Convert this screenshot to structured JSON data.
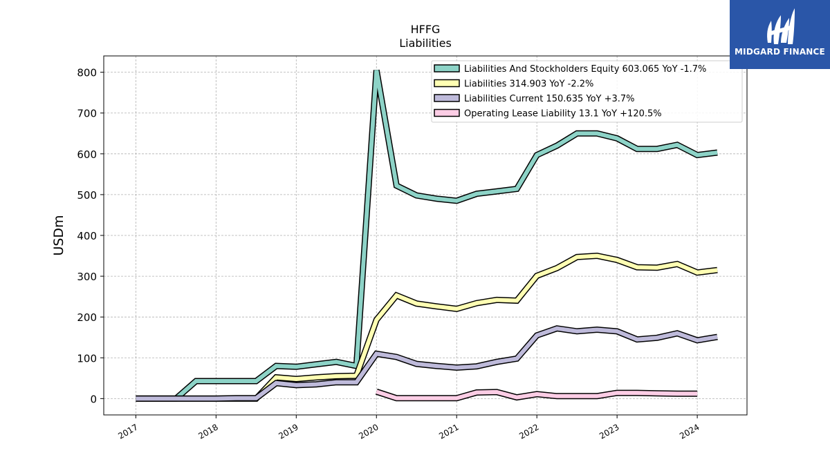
{
  "logo": {
    "text": "MIDGARD FINANCE",
    "color": "#2a56a8"
  },
  "chart_data": {
    "type": "line",
    "title": "HFFG",
    "subtitle": "Liabilities",
    "xlabel": "",
    "ylabel": "USDm",
    "ylim": [
      -40,
      840
    ],
    "xlim": [
      2016.6,
      2024.62
    ],
    "yticks": [
      0,
      100,
      200,
      300,
      400,
      500,
      600,
      700,
      800
    ],
    "xticks": [
      2017,
      2018,
      2019,
      2020,
      2021,
      2022,
      2023,
      2024
    ],
    "grid": true,
    "legend_position": "top-right",
    "series": [
      {
        "name": "Liabilities And Stockholders Equity  603.065 YoY -1.7%",
        "color": "#8dd3c7",
        "x": [
          2017.0,
          2017.5,
          2017.75,
          2018.0,
          2018.25,
          2018.5,
          2018.75,
          2019.0,
          2019.25,
          2019.5,
          2019.75,
          2020.0,
          2020.25,
          2020.5,
          2020.75,
          2021.0,
          2021.25,
          2021.5,
          2021.75,
          2022.0,
          2022.25,
          2022.5,
          2022.75,
          2023.0,
          2023.25,
          2023.5,
          2023.75,
          2024.0,
          2024.25
        ],
        "y": [
          0,
          0,
          43,
          43,
          43,
          43,
          80,
          78,
          84,
          90,
          80,
          805,
          522,
          498,
          490,
          485,
          502,
          508,
          514,
          597,
          620,
          650,
          650,
          638,
          612,
          612,
          622,
          597,
          603
        ]
      },
      {
        "name": "Liabilities  314.903 YoY -2.2%",
        "color": "#ffffb3",
        "x": [
          2017.0,
          2017.5,
          2017.75,
          2018.0,
          2018.25,
          2018.5,
          2018.75,
          2019.0,
          2019.25,
          2019.5,
          2019.75,
          2020.0,
          2020.25,
          2020.5,
          2020.75,
          2021.0,
          2021.25,
          2021.5,
          2021.75,
          2022.0,
          2022.25,
          2022.5,
          2022.75,
          2023.0,
          2023.25,
          2023.5,
          2023.75,
          2024.0,
          2024.25
        ],
        "y": [
          0,
          0,
          0,
          0,
          0,
          0,
          52,
          48,
          52,
          55,
          56,
          193,
          253,
          233,
          226,
          220,
          234,
          242,
          240,
          301,
          320,
          347,
          350,
          340,
          322,
          321,
          330,
          309,
          315
        ]
      },
      {
        "name": "Liabilities Current  150.635 YoY +3.7%",
        "color": "#bebada",
        "x": [
          2017.0,
          2017.5,
          2017.75,
          2018.0,
          2018.25,
          2018.5,
          2018.75,
          2019.0,
          2019.25,
          2019.5,
          2019.75,
          2020.0,
          2020.25,
          2020.5,
          2020.75,
          2021.0,
          2021.25,
          2021.5,
          2021.75,
          2022.0,
          2022.25,
          2022.5,
          2022.75,
          2023.0,
          2023.25,
          2023.5,
          2023.75,
          2024.0,
          2024.25
        ],
        "y": [
          0,
          0,
          0,
          0,
          1,
          1,
          38,
          33,
          35,
          40,
          40,
          110,
          102,
          85,
          80,
          76,
          79,
          90,
          98,
          155,
          172,
          165,
          169,
          165,
          145,
          149,
          160,
          143,
          151
        ]
      },
      {
        "name": "Operating Lease Liability  13.1 YoY +120.5%",
        "color": "#fccde5",
        "x": [
          2020.0,
          2020.25,
          2020.5,
          2020.75,
          2021.0,
          2021.25,
          2021.5,
          2021.75,
          2022.0,
          2022.25,
          2022.5,
          2022.75,
          2023.0,
          2023.25,
          2023.5,
          2023.75,
          2024.0
        ],
        "y": [
          17,
          1,
          1,
          1,
          1,
          15,
          16,
          3,
          11,
          6,
          6,
          6,
          14,
          14,
          13,
          12,
          12
        ]
      }
    ]
  }
}
